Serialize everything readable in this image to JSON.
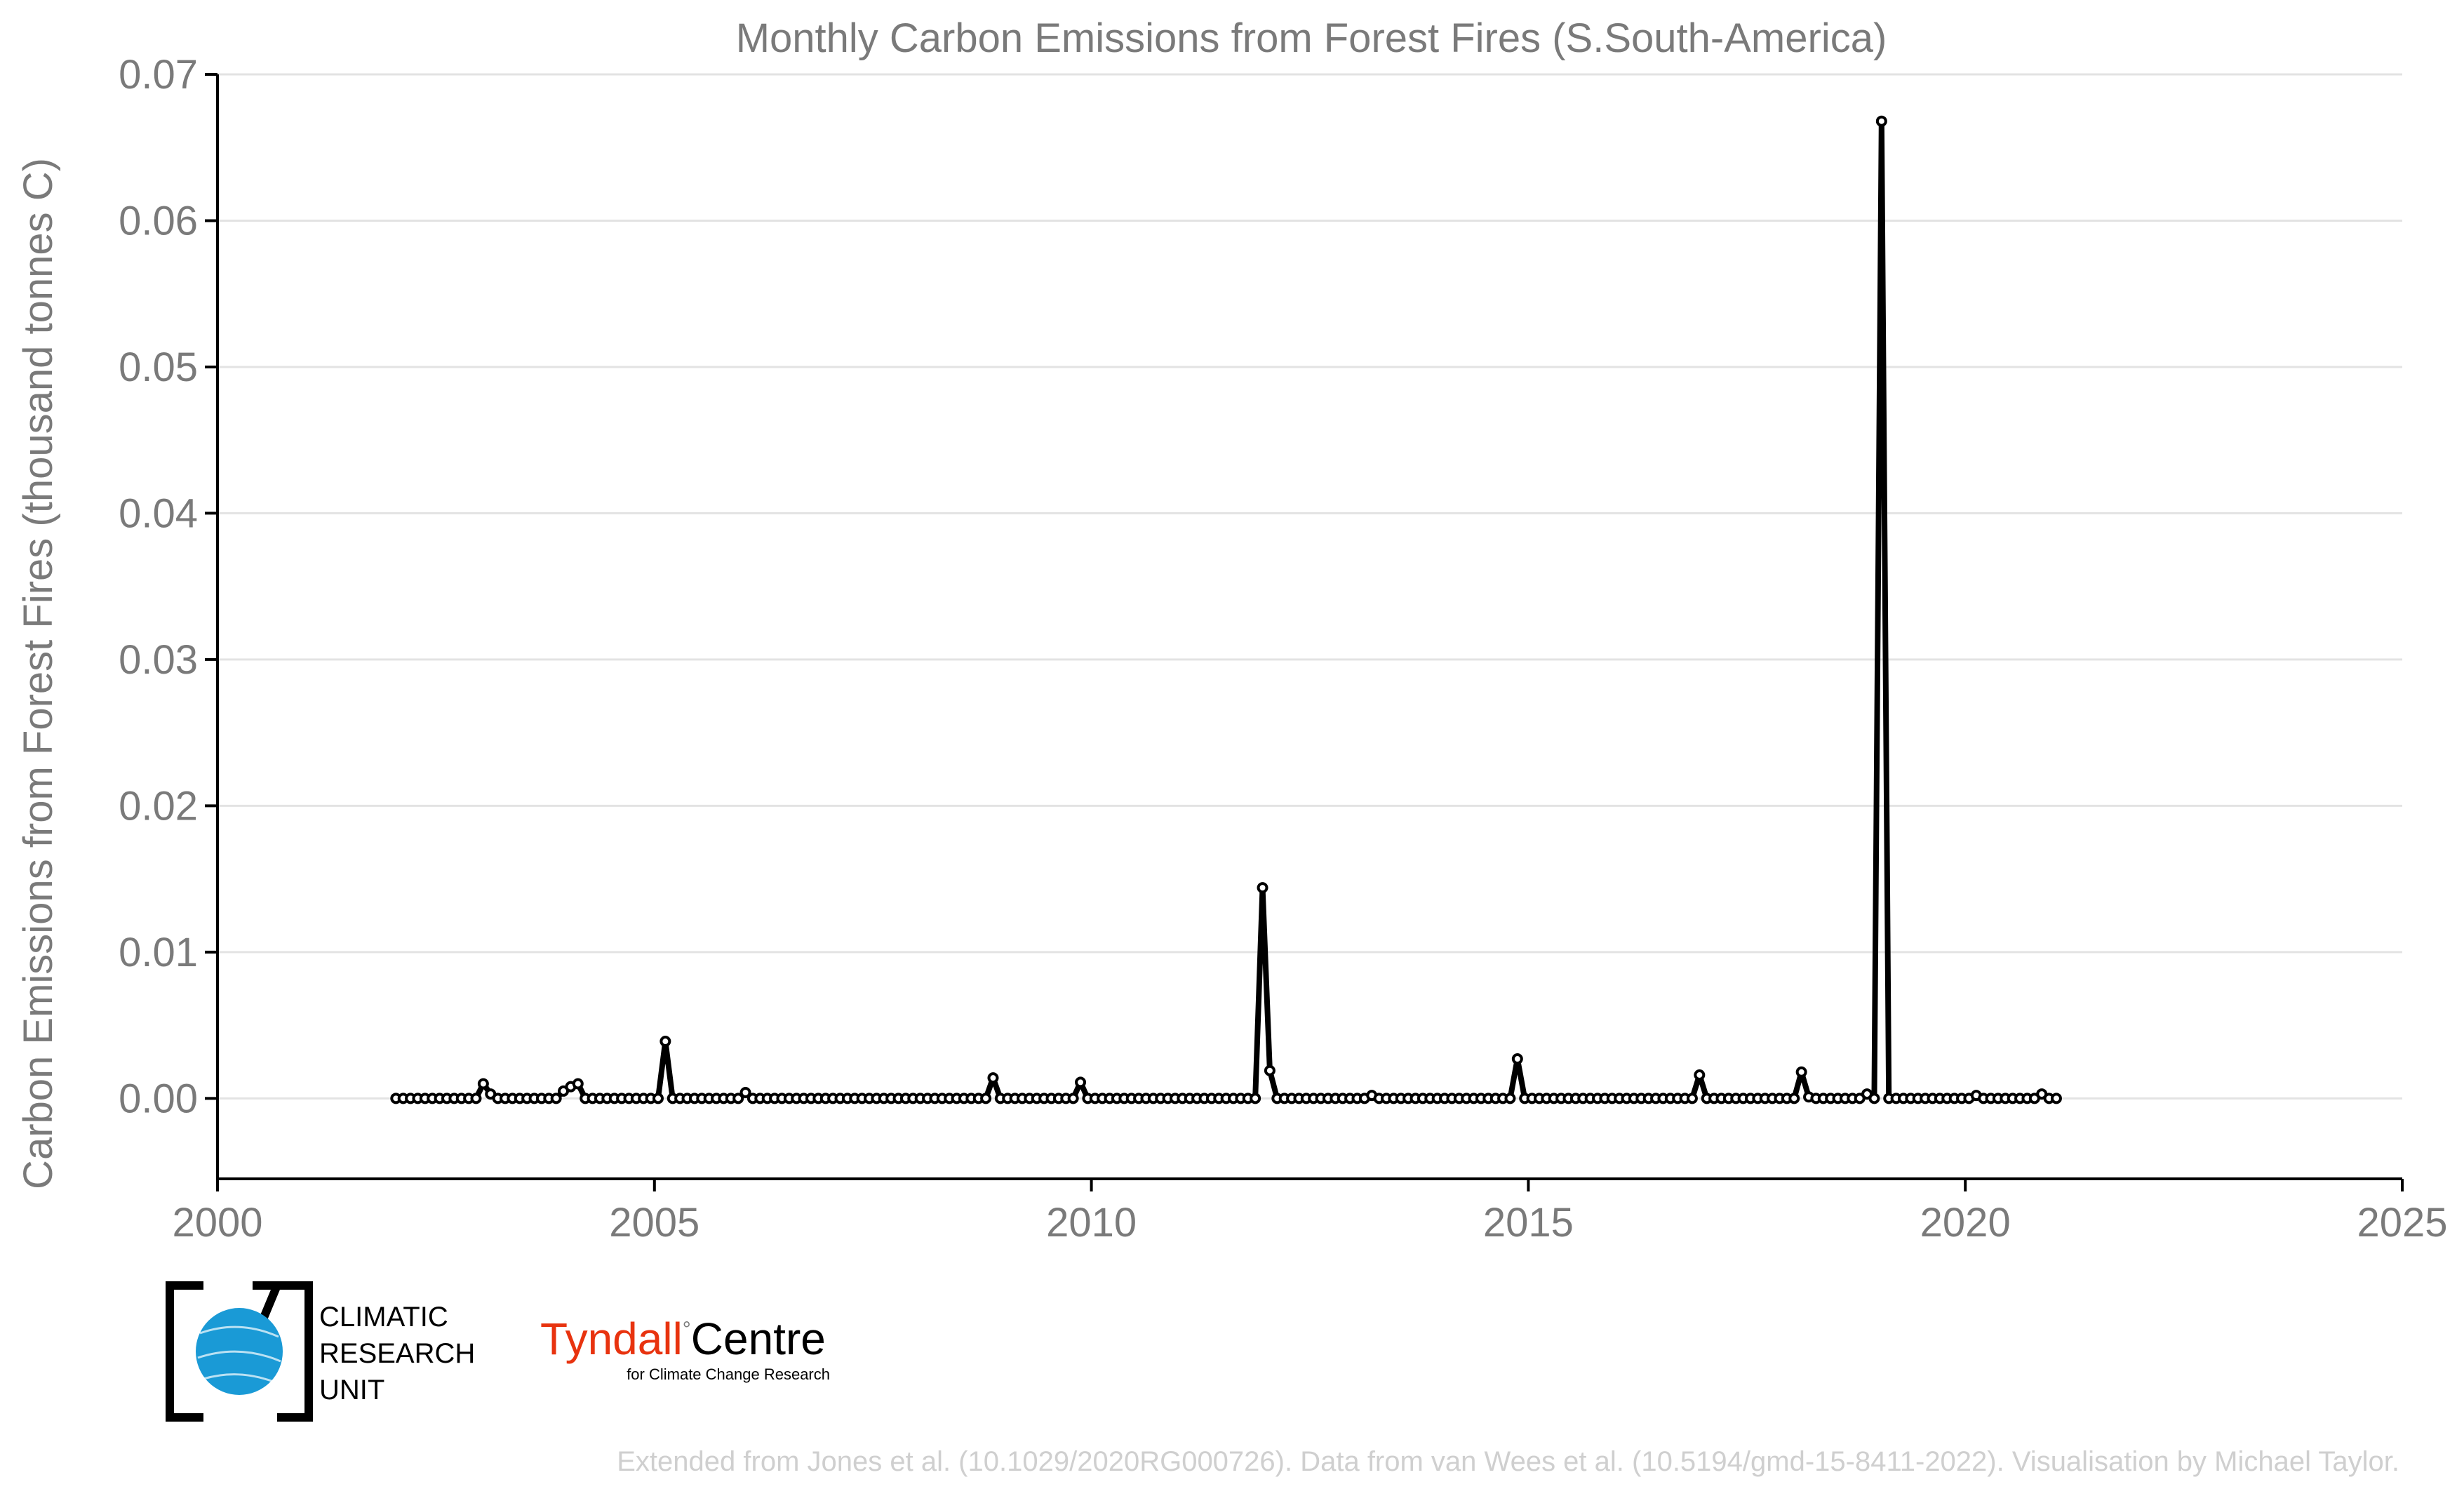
{
  "chart_data": {
    "type": "line",
    "title": "Monthly Carbon Emissions from Forest Fires (S.South-America)",
    "xlabel": "",
    "ylabel": "Carbon Emissions from Forest Fires (thousand tonnes C)",
    "xlim": [
      2000,
      2025
    ],
    "ylim": [
      -0.0055,
      0.07
    ],
    "x_ticks": [
      2000,
      2005,
      2010,
      2015,
      2020,
      2025
    ],
    "y_ticks": [
      0.0,
      0.01,
      0.02,
      0.03,
      0.04,
      0.05,
      0.06,
      0.07
    ],
    "y_tick_labels": [
      "0.00",
      "0.01",
      "0.02",
      "0.03",
      "0.04",
      "0.05",
      "0.06",
      "0.07"
    ],
    "grid": true,
    "start_year": 2002,
    "series": [
      {
        "name": "",
        "color": "#000000",
        "marker": "open-circle",
        "start": "2002-01",
        "values": [
          0,
          0,
          0,
          0,
          0,
          0,
          0,
          0,
          0,
          0,
          0,
          0,
          0.001,
          0.0003,
          0,
          0,
          0,
          0,
          0,
          0,
          0,
          0,
          0,
          0.0005,
          0.0008,
          0.001,
          0,
          0,
          0,
          0,
          0,
          0,
          0,
          0,
          0,
          0,
          0,
          0.0039,
          0,
          0,
          0,
          0,
          0,
          0,
          0,
          0,
          0,
          0,
          0.0004,
          0,
          0,
          0,
          0,
          0,
          0,
          0,
          0,
          0,
          0,
          0,
          0,
          0,
          0,
          0,
          0,
          0,
          0,
          0,
          0,
          0,
          0,
          0,
          0,
          0,
          0,
          0,
          0,
          0,
          0,
          0,
          0,
          0,
          0.0014,
          0,
          0,
          0,
          0,
          0,
          0,
          0,
          0,
          0,
          0,
          0,
          0.0011,
          0,
          0,
          0,
          0,
          0,
          0,
          0,
          0,
          0,
          0,
          0,
          0,
          0,
          0,
          0,
          0,
          0,
          0,
          0,
          0,
          0,
          0,
          0,
          0,
          0.0144,
          0.0019,
          0,
          0,
          0,
          0,
          0,
          0,
          0,
          0,
          0,
          0,
          0,
          0,
          0,
          0.0002,
          0,
          0,
          0,
          0,
          0,
          0,
          0,
          0,
          0,
          0,
          0,
          0,
          0,
          0,
          0,
          0,
          0,
          0,
          0,
          0.0027,
          0,
          0,
          0,
          0,
          0,
          0,
          0,
          0,
          0,
          0,
          0,
          0,
          0,
          0,
          0,
          0,
          0,
          0,
          0,
          0,
          0,
          0,
          0,
          0,
          0.0016,
          0,
          0,
          0,
          0,
          0,
          0,
          0,
          0,
          0,
          0,
          0,
          0,
          0,
          0.0018,
          0.0001,
          0,
          0,
          0,
          0,
          0,
          0,
          0,
          0.0003,
          0,
          0.0668,
          0,
          0,
          0,
          0,
          0,
          0,
          0,
          0,
          0,
          0,
          0,
          0,
          0.0002,
          0,
          0,
          0,
          0,
          0,
          0,
          0,
          0,
          0.0003,
          0,
          0
        ]
      }
    ]
  },
  "logos": {
    "cru_line1": "CLIMATIC",
    "cru_line2": "RESEARCH",
    "cru_line3": "UNIT",
    "tyndall_name": "Tyndall",
    "tyndall_centre": "Centre",
    "tyndall_sub": "for Climate Change Research",
    "tyndall_color": "#e8330f",
    "cru_globe_color": "#1a9ad6"
  },
  "credit": "Extended from Jones et al. (10.1029/2020RG000726). Data from van Wees et al. (10.5194/gmd-15-8411-2022). Visualisation by Michael Taylor."
}
